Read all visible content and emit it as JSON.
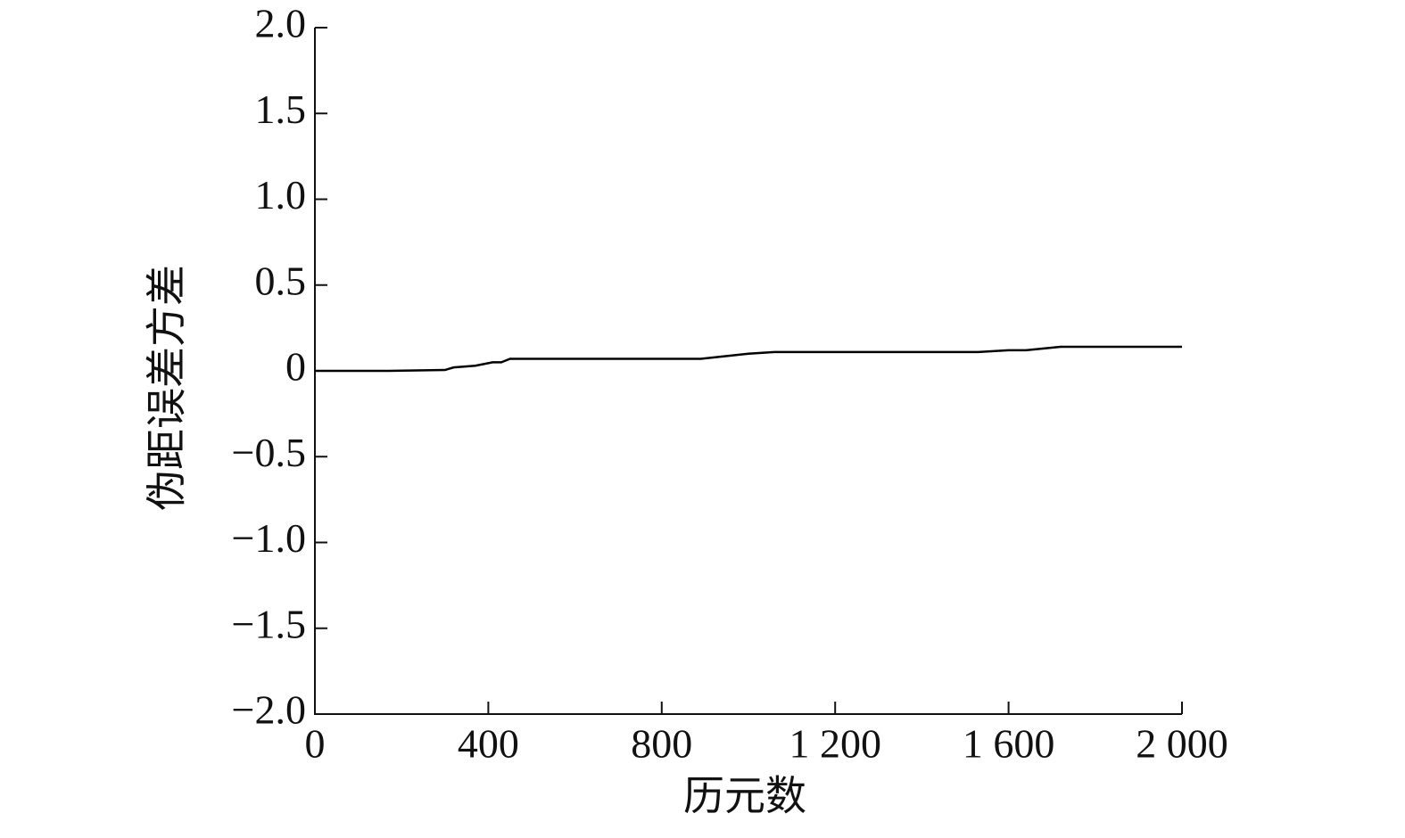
{
  "chart_data": {
    "type": "line",
    "x_label": "历元数",
    "y_label": "伪距误差方差",
    "x": [
      0,
      170,
      300,
      320,
      370,
      410,
      430,
      450,
      890,
      1000,
      1060,
      1530,
      1600,
      1640,
      1720,
      2000
    ],
    "values": [
      0,
      0,
      0.005,
      0.02,
      0.03,
      0.05,
      0.05,
      0.07,
      0.07,
      0.1,
      0.11,
      0.11,
      0.12,
      0.12,
      0.14,
      0.14
    ],
    "color": "#000000",
    "xlim": [
      0,
      2000
    ],
    "xticks": [
      0,
      400,
      800,
      {
        "value": 1200,
        "label": "1 200"
      },
      {
        "value": 1600,
        "label": "1 600"
      },
      {
        "value": 2000,
        "label": "2 000"
      }
    ],
    "ylim": [
      -2,
      2
    ],
    "yticks": [
      {
        "value": -2,
        "label": "−2.0"
      },
      {
        "value": -1.5,
        "label": "−1.5"
      },
      {
        "value": -1,
        "label": "−1.0"
      },
      {
        "value": -0.5,
        "label": "−0.5"
      },
      0,
      {
        "value": 0.5,
        "label": "0.5"
      },
      {
        "value": 1,
        "label": "1.0"
      },
      {
        "value": 1.5,
        "label": "1.5"
      },
      {
        "value": 2,
        "label": "2.0"
      }
    ],
    "grid": false
  }
}
